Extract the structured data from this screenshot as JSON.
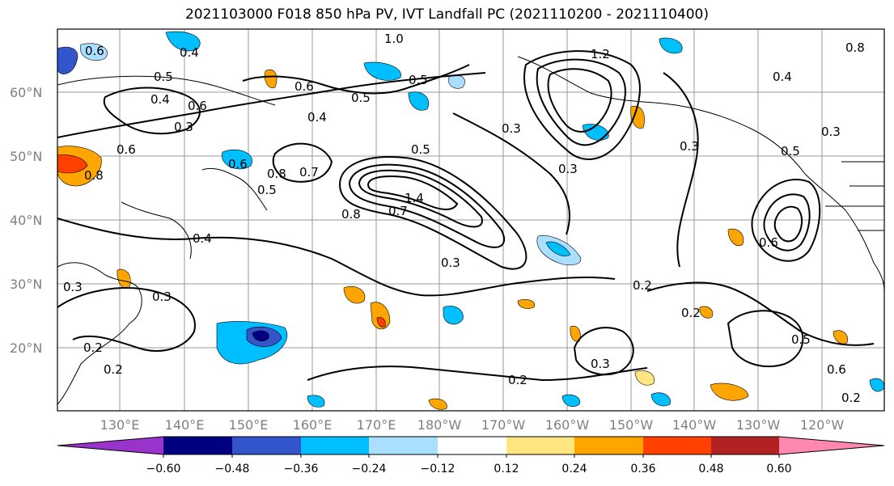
{
  "title": "2021103000 F018 850 hPa PV, IVT Landfall PC (2021110200 - 2021110400)",
  "lat_labels": [
    "60°N",
    "50°N",
    "40°N",
    "30°N",
    "20°N"
  ],
  "lon_labels": [
    "130°E",
    "140°E",
    "150°E",
    "160°E",
    "170°E",
    "180°W",
    "170°W",
    "160°W",
    "150°W",
    "140°W",
    "130°W",
    "120°W"
  ],
  "colorbar": {
    "ticks": [
      "−0.60",
      "−0.48",
      "−0.36",
      "−0.24",
      "−0.12",
      "0.12",
      "0.24",
      "0.36",
      "0.48",
      "0.60"
    ],
    "colors": [
      "#9933cc",
      "#000080",
      "#3355cc",
      "#00bfff",
      "#aadfff",
      "#ffffff",
      "#ffe680",
      "#ffa500",
      "#ff4000",
      "#b22222",
      "#ff88b0"
    ]
  },
  "contour_labels": [
    "1.0",
    "0.6",
    "0.4",
    "0.5",
    "0.6",
    "0.6",
    "0.3",
    "0.4",
    "0.5",
    "0.4",
    "0.6",
    "0.5",
    "0.8",
    "0.6",
    "0.7",
    "0.8",
    "0.5",
    "0.5",
    "0.8",
    "0.7",
    "1.4",
    "0.3",
    "0.3",
    "0.4",
    "0.3",
    "0.2",
    "0.2",
    "0.3",
    "0.2",
    "0.3",
    "0.3",
    "0.2",
    "0.5",
    "0.6",
    "0.2",
    "0.6",
    "0.4",
    "0.5",
    "0.3",
    "0.8",
    "1.2",
    "0.3",
    "0.2"
  ]
}
